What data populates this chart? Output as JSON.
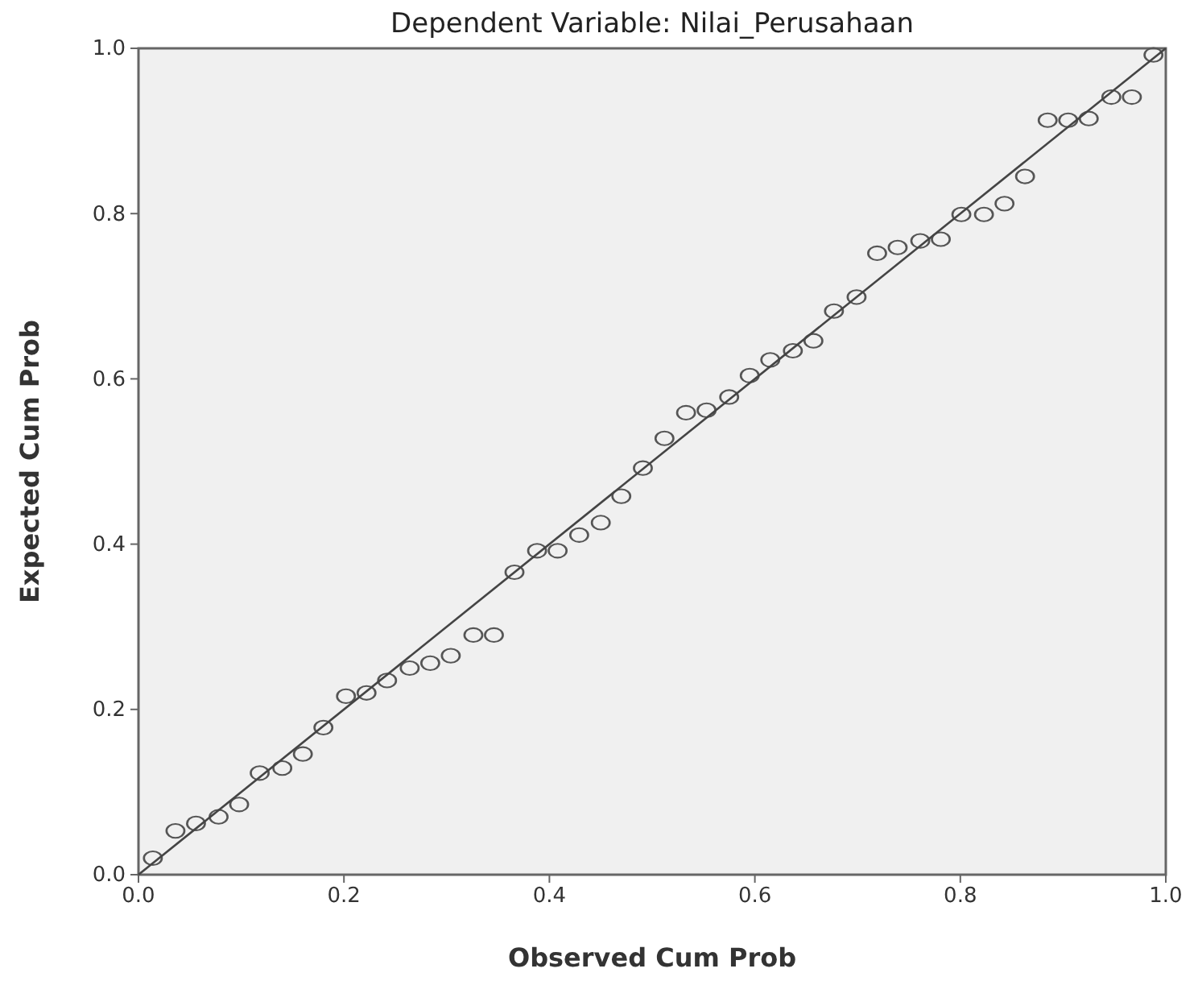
{
  "chart_data": {
    "type": "scatter",
    "title": "Dependent Variable: Nilai_Perusahaan",
    "xlabel": "Observed Cum Prob",
    "ylabel": "Expected Cum Prob",
    "xlim": [
      0,
      1
    ],
    "ylim": [
      0,
      1
    ],
    "xticks": [
      {
        "value": 0,
        "label": "0.0"
      },
      {
        "value": 0.2,
        "label": "0.2"
      },
      {
        "value": 0.4,
        "label": "0.4"
      },
      {
        "value": 0.6,
        "label": "0.6"
      },
      {
        "value": 0.8,
        "label": "0.8"
      },
      {
        "value": 1,
        "label": "1.0"
      }
    ],
    "yticks": [
      {
        "value": 0,
        "label": "0.0"
      },
      {
        "value": 0.2,
        "label": "0.2"
      },
      {
        "value": 0.4,
        "label": "0.4"
      },
      {
        "value": 0.6,
        "label": "0.6"
      },
      {
        "value": 0.8,
        "label": "0.8"
      },
      {
        "value": 1,
        "label": "1.0"
      }
    ],
    "grid": false,
    "series": [
      {
        "marker": "circle",
        "color": "#555555",
        "x": [
          0.014,
          0.036,
          0.056,
          0.078,
          0.098,
          0.118,
          0.14,
          0.16,
          0.18,
          0.202,
          0.222,
          0.242,
          0.264,
          0.284,
          0.304,
          0.326,
          0.346,
          0.366,
          0.388,
          0.408,
          0.429,
          0.45,
          0.47,
          0.491,
          0.512,
          0.533,
          0.553,
          0.575,
          0.595,
          0.615,
          0.637,
          0.657,
          0.677,
          0.699,
          0.719,
          0.739,
          0.761,
          0.781,
          0.801,
          0.823,
          0.843,
          0.863,
          0.885,
          0.905,
          0.925,
          0.947,
          0.967,
          0.988
        ],
        "values": [
          0.02,
          0.053,
          0.062,
          0.07,
          0.085,
          0.123,
          0.129,
          0.146,
          0.178,
          0.216,
          0.22,
          0.235,
          0.25,
          0.256,
          0.265,
          0.29,
          0.29,
          0.366,
          0.392,
          0.392,
          0.411,
          0.426,
          0.458,
          0.492,
          0.528,
          0.559,
          0.562,
          0.578,
          0.604,
          0.623,
          0.634,
          0.646,
          0.682,
          0.699,
          0.752,
          0.759,
          0.767,
          0.769,
          0.799,
          0.799,
          0.812,
          0.845,
          0.913,
          0.913,
          0.915,
          0.941,
          0.941,
          0.992
        ]
      },
      {
        "type": "line",
        "marker": "none",
        "color": "#444444",
        "x": [
          0,
          1
        ],
        "values": [
          0,
          1
        ]
      }
    ]
  }
}
